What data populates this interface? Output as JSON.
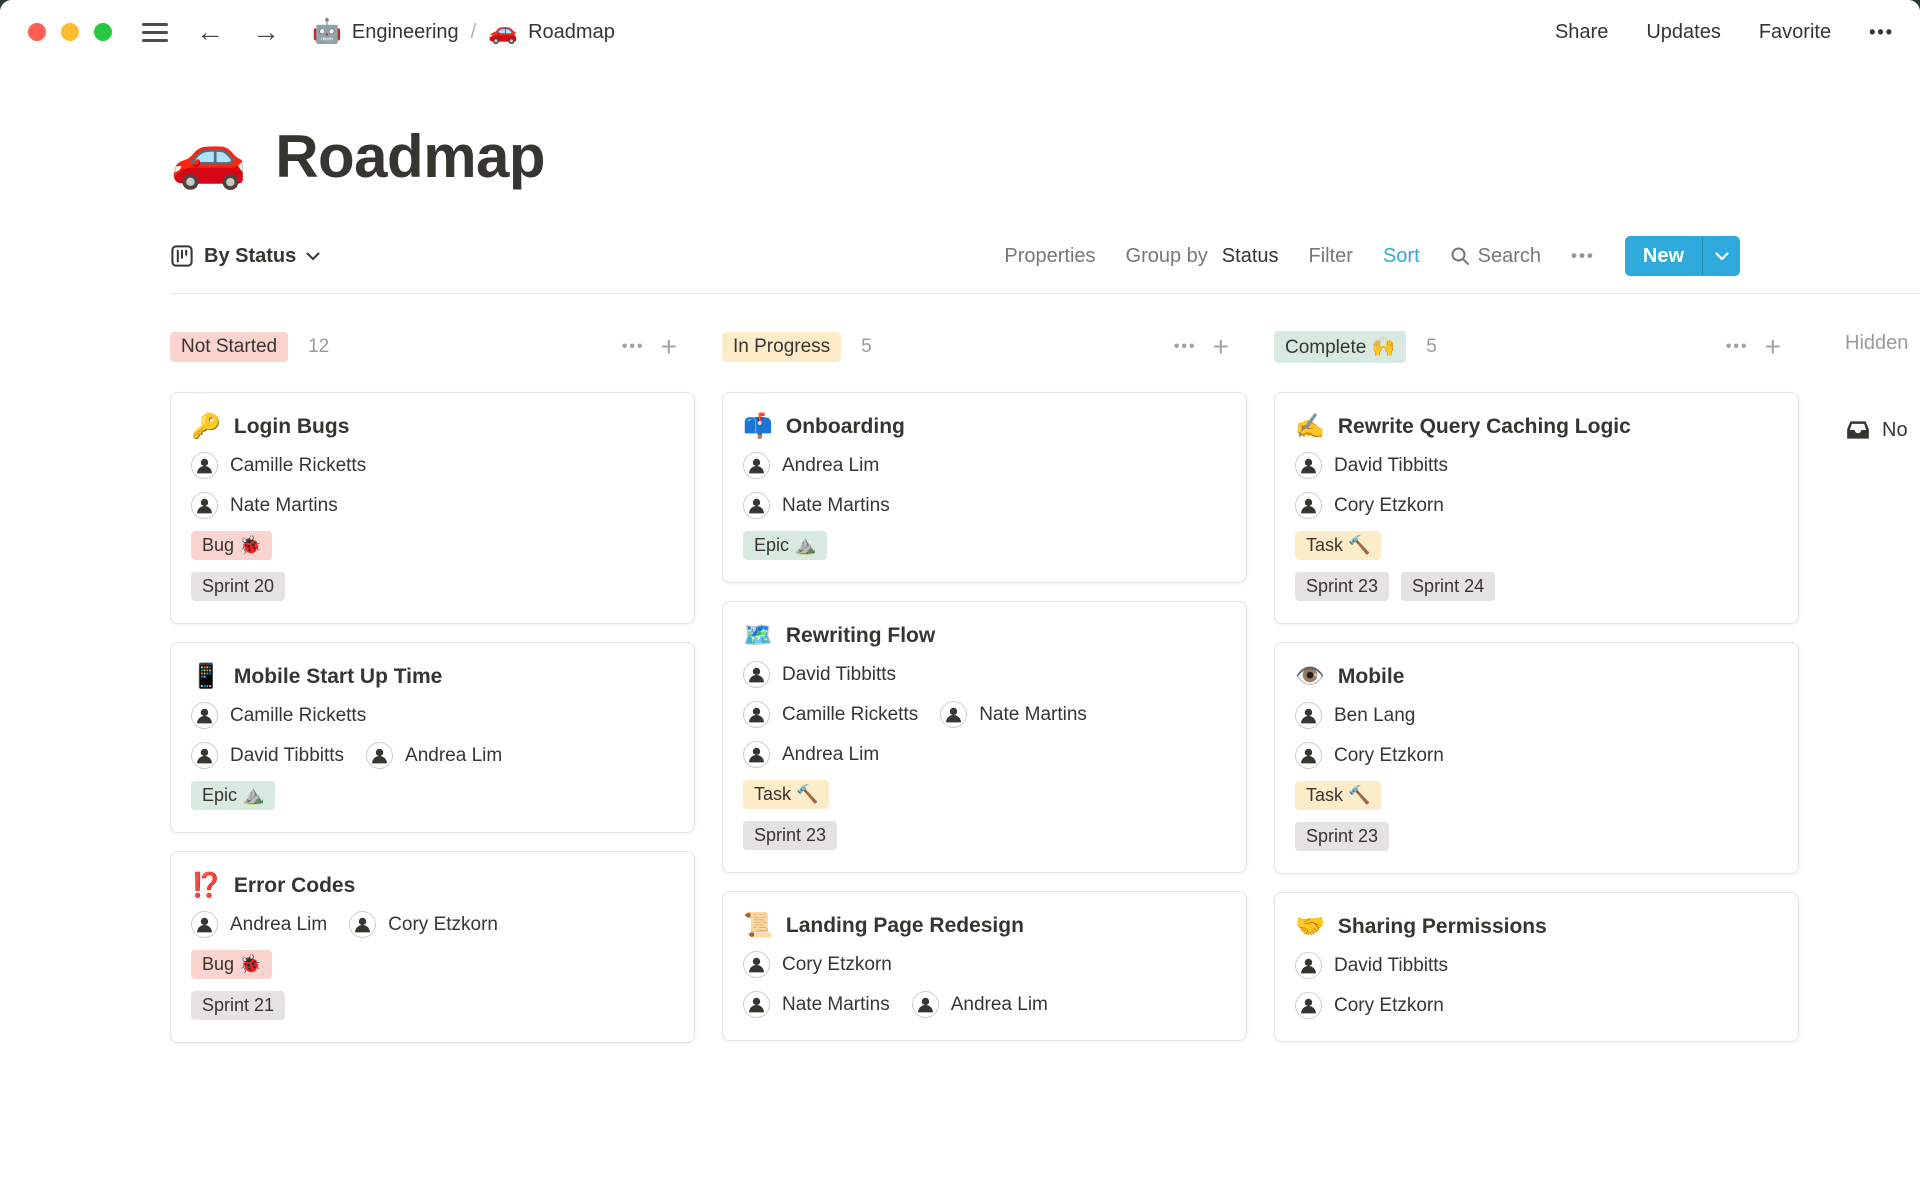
{
  "window": {
    "breadcrumb": {
      "workspace_icon": "🤖",
      "workspace_label": "Engineering",
      "separator": "/",
      "page_icon": "🚗",
      "page_label": "Roadmap"
    },
    "actions": {
      "share": "Share",
      "updates": "Updates",
      "favorite": "Favorite",
      "more": "•••"
    }
  },
  "page": {
    "icon": "🚗",
    "title": "Roadmap"
  },
  "toolbar": {
    "view_label": "By Status",
    "properties_label": "Properties",
    "group_by_prefix": "Group by",
    "group_by_value": "Status",
    "filter_label": "Filter",
    "sort_label": "Sort",
    "search_label": "Search",
    "more_icon": "•••",
    "new_label": "New"
  },
  "icons": {
    "more": "•••",
    "add": "+"
  },
  "colors": {
    "accent": "#2EAADC",
    "text": "#37352F",
    "muted": "#787774",
    "faint": "#9B9A97"
  },
  "badge_colors": {
    "pink": "#FBD3CF",
    "yellow": "#FDECC8",
    "green": "#D8EADF",
    "gray": "#E4E3E1"
  },
  "board": {
    "hidden_label": "Hidden",
    "no_status_label": "No",
    "columns": [
      {
        "name": "Not Started",
        "count": "12",
        "badge_bg": "#FBD3CF",
        "cards": [
          {
            "icon": "🔑",
            "title": "Login Bugs",
            "assignee_rows": [
              [
                "Camille Ricketts"
              ],
              [
                "Nate Martins"
              ]
            ],
            "tag_rows": [
              [
                {
                  "text": "Bug 🐞",
                  "tone": "pink"
                }
              ],
              [
                {
                  "text": "Sprint 20",
                  "tone": "gray"
                }
              ]
            ]
          },
          {
            "icon": "📱",
            "title": "Mobile Start Up Time",
            "assignee_rows": [
              [
                "Camille Ricketts"
              ],
              [
                "David Tibbitts",
                "Andrea Lim"
              ]
            ],
            "tag_rows": [
              [
                {
                  "text": "Epic ⛰️",
                  "tone": "green"
                }
              ]
            ]
          },
          {
            "icon": "⁉️",
            "title": "Error Codes",
            "assignee_rows": [
              [
                "Andrea Lim",
                "Cory Etzkorn"
              ]
            ],
            "tag_rows": [
              [
                {
                  "text": "Bug 🐞",
                  "tone": "pink"
                }
              ],
              [
                {
                  "text": "Sprint 21",
                  "tone": "gray"
                }
              ]
            ]
          }
        ]
      },
      {
        "name": "In Progress",
        "count": "5",
        "badge_bg": "#FDECC8",
        "cards": [
          {
            "icon": "📫",
            "title": "Onboarding",
            "assignee_rows": [
              [
                "Andrea Lim"
              ],
              [
                "Nate Martins"
              ]
            ],
            "tag_rows": [
              [
                {
                  "text": "Epic ⛰️",
                  "tone": "green"
                }
              ]
            ]
          },
          {
            "icon": "🗺️",
            "title": "Rewriting Flow",
            "assignee_rows": [
              [
                "David Tibbitts"
              ],
              [
                "Camille Ricketts",
                "Nate Martins"
              ],
              [
                "Andrea Lim"
              ]
            ],
            "tag_rows": [
              [
                {
                  "text": "Task 🔨",
                  "tone": "yellow"
                }
              ],
              [
                {
                  "text": "Sprint 23",
                  "tone": "gray"
                }
              ]
            ]
          },
          {
            "icon": "📜",
            "title": "Landing Page Redesign",
            "assignee_rows": [
              [
                "Cory Etzkorn"
              ],
              [
                "Nate Martins",
                "Andrea Lim"
              ]
            ],
            "tag_rows": []
          }
        ]
      },
      {
        "name": "Complete 🙌",
        "count": "5",
        "badge_bg": "#D8EADF",
        "cards": [
          {
            "icon": "✍️",
            "title": "Rewrite Query Caching Logic",
            "assignee_rows": [
              [
                "David Tibbitts"
              ],
              [
                "Cory Etzkorn"
              ]
            ],
            "tag_rows": [
              [
                {
                  "text": "Task 🔨",
                  "tone": "yellow"
                }
              ],
              [
                {
                  "text": "Sprint 23",
                  "tone": "gray"
                },
                {
                  "text": "Sprint 24",
                  "tone": "gray"
                }
              ]
            ]
          },
          {
            "icon": "👁️",
            "title": "Mobile",
            "assignee_rows": [
              [
                "Ben Lang"
              ],
              [
                "Cory Etzkorn"
              ]
            ],
            "tag_rows": [
              [
                {
                  "text": "Task 🔨",
                  "tone": "yellow"
                }
              ],
              [
                {
                  "text": "Sprint 23",
                  "tone": "gray"
                }
              ]
            ]
          },
          {
            "icon": "🤝",
            "title": "Sharing Permissions",
            "assignee_rows": [
              [
                "David Tibbitts"
              ],
              [
                "Cory Etzkorn"
              ]
            ],
            "tag_rows": []
          }
        ]
      }
    ]
  }
}
